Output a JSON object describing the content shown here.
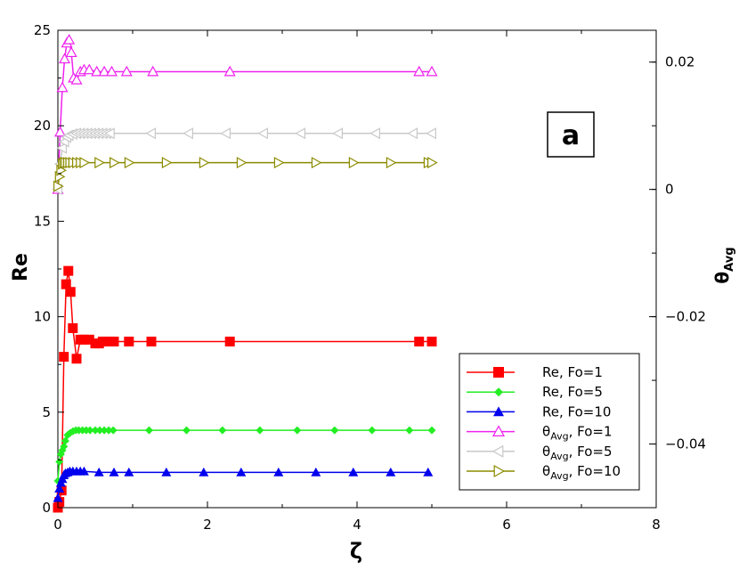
{
  "chart_data": {
    "type": "line",
    "xlabel": "ζ",
    "ylabel": "Re",
    "y2label": "θ",
    "y2label_sub": "Avg",
    "panel_label": "a",
    "xlim": [
      0,
      8
    ],
    "ylim": [
      0,
      25
    ],
    "y2lim": [
      -0.05,
      0.025
    ],
    "xticks": [
      0,
      2,
      4,
      6,
      8
    ],
    "yticks": [
      0,
      5,
      10,
      15,
      20,
      25
    ],
    "y2ticks": [
      -0.04,
      -0.02,
      0,
      0.02
    ],
    "y2tick_labels": [
      "−0.04",
      "−0.02",
      "0",
      "0.02"
    ],
    "legend_position": "bottom-right",
    "colors": {
      "red": "#ff0000",
      "green": "#22ee22",
      "blue": "#0000ee",
      "magenta": "#ee22ee",
      "gray": "#c8c8c8",
      "olive": "#8b8b00"
    },
    "series": [
      {
        "name": "Re, Fo=1",
        "name_main": "Re, Fo=1",
        "name_sub": "",
        "name_tail": "",
        "axis": "left",
        "color": "#ff0000",
        "marker": "square",
        "x": [
          0,
          0.02,
          0.05,
          0.08,
          0.11,
          0.14,
          0.17,
          0.2,
          0.25,
          0.3,
          0.35,
          0.42,
          0.5,
          0.55,
          0.6,
          0.65,
          0.7,
          0.75,
          0.95,
          1.25,
          2.3,
          4.83,
          5.0
        ],
        "y": [
          0,
          0.3,
          0.9,
          7.9,
          11.7,
          12.4,
          11.3,
          9.4,
          7.8,
          8.8,
          8.8,
          8.8,
          8.6,
          8.6,
          8.7,
          8.7,
          8.7,
          8.7,
          8.7,
          8.7,
          8.7,
          8.7,
          8.7
        ]
      },
      {
        "name": "Re, Fo=5",
        "name_main": "Re, Fo=5",
        "name_sub": "",
        "name_tail": "",
        "axis": "left",
        "color": "#22ee22",
        "marker": "diamond",
        "x": [
          0,
          0.02,
          0.04,
          0.06,
          0.08,
          0.1,
          0.13,
          0.16,
          0.2,
          0.24,
          0.28,
          0.33,
          0.38,
          0.43,
          0.5,
          0.56,
          0.62,
          0.68,
          0.74,
          1.22,
          1.72,
          2.2,
          2.7,
          3.2,
          3.7,
          4.2,
          4.7,
          5.0
        ],
        "y": [
          1.4,
          2.4,
          2.8,
          3.0,
          3.2,
          3.5,
          3.8,
          3.9,
          4.0,
          4.05,
          4.05,
          4.05,
          4.05,
          4.05,
          4.05,
          4.05,
          4.05,
          4.05,
          4.05,
          4.05,
          4.05,
          4.05,
          4.05,
          4.05,
          4.05,
          4.05,
          4.05,
          4.05
        ]
      },
      {
        "name": "Re, Fo=10",
        "name_main": "Re, Fo=10",
        "name_sub": "",
        "name_tail": "",
        "axis": "left",
        "color": "#0000ee",
        "marker": "triangle-up",
        "x": [
          0,
          0.02,
          0.04,
          0.06,
          0.08,
          0.1,
          0.13,
          0.16,
          0.2,
          0.25,
          0.3,
          0.35,
          0.55,
          0.75,
          0.95,
          1.45,
          1.95,
          2.45,
          2.95,
          3.45,
          3.95,
          4.45,
          4.95
        ],
        "y": [
          0.5,
          1.0,
          1.3,
          1.5,
          1.7,
          1.8,
          1.85,
          1.9,
          1.9,
          1.9,
          1.9,
          1.9,
          1.85,
          1.85,
          1.85,
          1.85,
          1.85,
          1.85,
          1.85,
          1.85,
          1.85,
          1.85,
          1.85
        ]
      },
      {
        "name": "θAvg, Fo=1",
        "name_main": "θ",
        "name_sub": "Avg",
        "name_tail": ", Fo=1",
        "axis": "right",
        "color": "#ee22ee",
        "marker": "triangle-up-open",
        "x": [
          0,
          0.03,
          0.06,
          0.09,
          0.12,
          0.15,
          0.18,
          0.21,
          0.25,
          0.3,
          0.35,
          0.42,
          0.52,
          0.62,
          0.72,
          0.92,
          1.27,
          2.3,
          4.83,
          5.0
        ],
        "y": [
          0.0,
          0.009,
          0.016,
          0.0205,
          0.023,
          0.0235,
          0.0215,
          0.0175,
          0.0172,
          0.0185,
          0.0188,
          0.0188,
          0.0185,
          0.0185,
          0.0185,
          0.0185,
          0.0185,
          0.0185,
          0.0185,
          0.0185
        ]
      },
      {
        "name": "θAvg, Fo=5",
        "name_main": "θ",
        "name_sub": "Avg",
        "name_tail": ", Fo=5",
        "axis": "right",
        "color": "#c8c8c8",
        "marker": "triangle-left-open",
        "x": [
          0,
          0.03,
          0.06,
          0.09,
          0.12,
          0.15,
          0.2,
          0.25,
          0.3,
          0.35,
          0.4,
          0.45,
          0.5,
          0.55,
          0.6,
          0.65,
          0.7,
          1.25,
          1.75,
          2.25,
          2.75,
          3.25,
          3.75,
          4.25,
          4.75,
          5.0
        ],
        "y": [
          0.0,
          0.004,
          0.0065,
          0.0075,
          0.0082,
          0.0085,
          0.0087,
          0.0088,
          0.0088,
          0.0088,
          0.0088,
          0.0088,
          0.0088,
          0.0088,
          0.0088,
          0.0088,
          0.0088,
          0.0088,
          0.0088,
          0.0088,
          0.0088,
          0.0088,
          0.0088,
          0.0088,
          0.0088,
          0.0088
        ]
      },
      {
        "name": "θAvg, Fo=10",
        "name_main": "θ",
        "name_sub": "Avg",
        "name_tail": ", Fo=10",
        "axis": "right",
        "color": "#8b8b00",
        "marker": "triangle-right-open",
        "x": [
          0,
          0.02,
          0.04,
          0.06,
          0.08,
          0.1,
          0.13,
          0.16,
          0.2,
          0.25,
          0.3,
          0.35,
          0.55,
          0.75,
          0.95,
          1.45,
          1.95,
          2.45,
          2.95,
          3.45,
          3.95,
          4.45,
          4.95,
          5.0
        ],
        "y": [
          0.0005,
          0.002,
          0.003,
          0.004,
          0.0042,
          0.0042,
          0.0042,
          0.0042,
          0.0042,
          0.0042,
          0.0042,
          0.0042,
          0.0042,
          0.0042,
          0.0042,
          0.0042,
          0.0042,
          0.0042,
          0.0042,
          0.0042,
          0.0042,
          0.0042,
          0.0042,
          0.0042
        ]
      }
    ]
  }
}
